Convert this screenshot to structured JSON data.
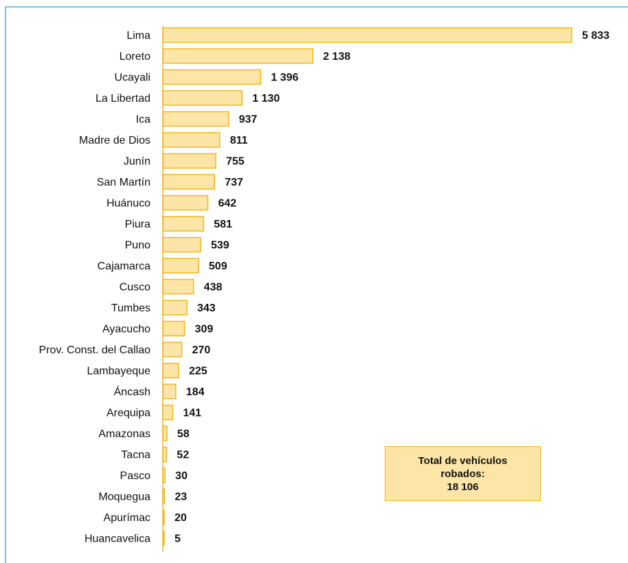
{
  "colors": {
    "frame_border": "#3fb2e3",
    "bar_fill": "#fce5a6",
    "bar_stroke": "#f2b61c",
    "axis": "#e9b32f",
    "text": "#111111"
  },
  "total_box": {
    "line1": "Total de vehículos",
    "line2": "robados:",
    "line3": "18 106"
  },
  "chart_data": {
    "type": "bar",
    "orientation": "horizontal",
    "title": "",
    "xlabel": "",
    "ylabel": "",
    "categories": [
      "Lima",
      "Loreto",
      "Ucayali",
      "La Libertad",
      "Ica",
      "Madre de Dios",
      "Junín",
      "San Martín",
      "Huánuco",
      "Piura",
      "Puno",
      "Cajamarca",
      "Cusco",
      "Tumbes",
      "Ayacucho",
      "Prov. Const. del Callao",
      "Lambayeque",
      "Áncash",
      "Arequipa",
      "Amazonas",
      "Tacna",
      "Pasco",
      "Moquegua",
      "Apurímac",
      "Huancavelica"
    ],
    "values": [
      5833,
      2138,
      1396,
      1130,
      937,
      811,
      755,
      737,
      642,
      581,
      539,
      509,
      438,
      343,
      309,
      270,
      225,
      184,
      141,
      58,
      52,
      30,
      23,
      20,
      5
    ],
    "value_labels": [
      "5 833",
      "2 138",
      "1 396",
      "1 130",
      "937",
      "811",
      "755",
      "737",
      "642",
      "581",
      "539",
      "509",
      "438",
      "343",
      "309",
      "270",
      "225",
      "184",
      "141",
      "58",
      "52",
      "30",
      "23",
      "20",
      "5"
    ],
    "xlim": [
      0,
      5833
    ],
    "grid": false,
    "legend": "none"
  }
}
